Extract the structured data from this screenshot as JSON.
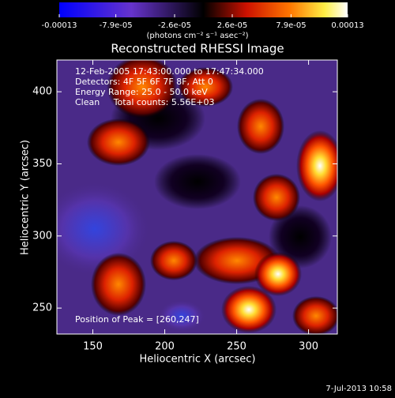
{
  "chart_data": {
    "type": "image",
    "title": "Reconstructed RHESSI Image",
    "xlabel": "Heliocentric X (arcsec)",
    "ylabel": "Heliocentric Y (arcsec)",
    "xlim": [
      125,
      320
    ],
    "ylim": [
      232,
      422
    ],
    "xticks": [
      150,
      200,
      250,
      300
    ],
    "yticks": [
      250,
      300,
      350,
      400
    ],
    "colorbar": {
      "label": "(photons cm⁻² s⁻¹ asec⁻²)",
      "lim": [
        -0.00013,
        0.00013
      ],
      "ticks": [
        {
          "value": -0.00013,
          "label": "-0.00013"
        },
        {
          "value": -7.9e-05,
          "label": "-7.9e-05"
        },
        {
          "value": -2.6e-05,
          "label": "-2.6e-05"
        },
        {
          "value": 2.6e-05,
          "label": "2.6e-05"
        },
        {
          "value": 7.9e-05,
          "label": "7.9e-05"
        },
        {
          "value": 0.00013,
          "label": "0.00013"
        }
      ]
    },
    "annotations": [
      "12-Feb-2005 17:43:00.000 to 17:47:34.000",
      "Detectors: 4F 5F 6F 7F 8F, Att 0",
      "Energy Range: 25.0 - 50.0 keV",
      "Clean     Total counts: 5.56E+03"
    ],
    "peak_label": "Position of Peak = [260,247]",
    "timestamp": "7-Jul-2013 10:58"
  }
}
